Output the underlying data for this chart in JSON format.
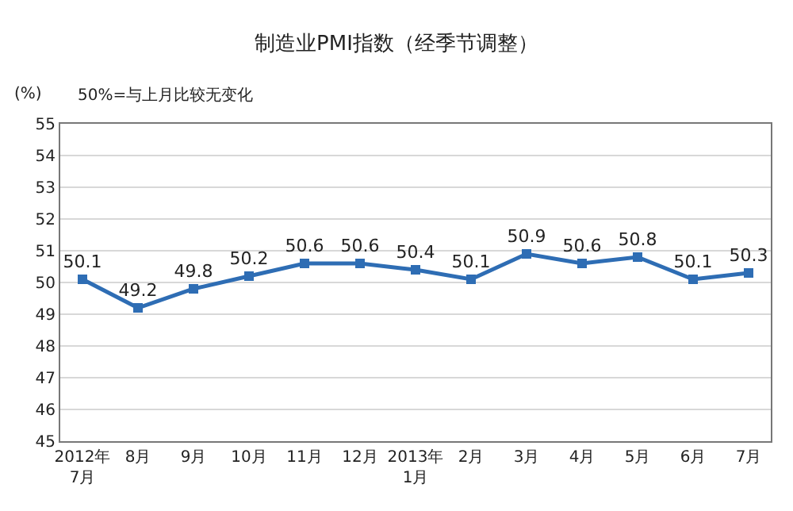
{
  "chart_data": {
    "type": "line",
    "title": "制造业PMI指数（经季节调整）",
    "ylabel": "(%)",
    "annotations": [
      "50%=与上月比较无变化"
    ],
    "categories": [
      "2012年\n7月",
      "8月",
      "9月",
      "10月",
      "11月",
      "12月",
      "2013年\n1月",
      "2月",
      "3月",
      "4月",
      "5月",
      "6月",
      "7月"
    ],
    "series": [
      {
        "color": "#2e6db4",
        "values": [
          50.1,
          49.2,
          49.8,
          50.2,
          50.6,
          50.6,
          50.4,
          50.1,
          50.9,
          50.6,
          50.8,
          50.1,
          50.3
        ]
      }
    ],
    "ylim": [
      45,
      55
    ],
    "yticks": [
      45,
      46,
      47,
      48,
      49,
      50,
      51,
      52,
      53,
      54,
      55
    ],
    "grid": "y",
    "marker": "square",
    "line_style": "solid",
    "data_labels": true,
    "legend": false
  }
}
